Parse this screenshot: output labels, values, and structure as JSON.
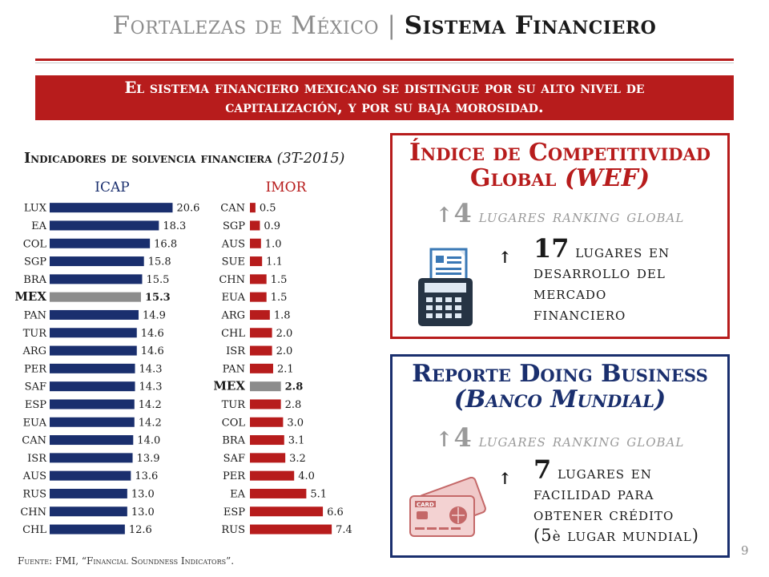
{
  "header": {
    "title_left": "Fortalezas de México",
    "title_sep": "|",
    "title_right": "Sistema Financiero"
  },
  "banner": {
    "line1": "El sistema financiero mexicano se distingue por su alto nivel de",
    "line2": "capitalización, y por su baja morosidad."
  },
  "chart_title": {
    "main": "Indicadores de solvencia financiera",
    "period": "(3T-2015)"
  },
  "source": "Fuente: FMI, “Financial Soundness Indicators”.",
  "page_number": "9",
  "colors": {
    "red": "#b71c1c",
    "navy": "#1a2f6e",
    "highlight_gray": "#8c8c8c"
  },
  "chart_data": [
    {
      "type": "bar",
      "orientation": "horizontal",
      "title": "ICAP",
      "categories": [
        "LUX",
        "EA",
        "COL",
        "SGP",
        "BRA",
        "MEX",
        "PAN",
        "TUR",
        "ARG",
        "PER",
        "SAF",
        "ESP",
        "EUA",
        "CAN",
        "ISR",
        "AUS",
        "RUS",
        "CHN",
        "CHL"
      ],
      "labels": [
        "20.6",
        "18.3",
        "16.8",
        "15.8",
        "15.5",
        "15.3",
        "14.9",
        "14.6",
        "14.6",
        "14.3",
        "14.3",
        "14.2",
        "14.2",
        "14.0",
        "13.9",
        "13.6",
        "13.0",
        "13.0",
        "12.6"
      ],
      "values": [
        20.6,
        18.3,
        16.8,
        15.8,
        15.5,
        15.3,
        14.9,
        14.6,
        14.6,
        14.3,
        14.3,
        14.2,
        14.2,
        14.0,
        13.9,
        13.6,
        13.0,
        13.0,
        12.6
      ],
      "highlight": "MEX",
      "bar_color": "#1a2f6e"
    },
    {
      "type": "bar",
      "orientation": "horizontal",
      "title": "IMOR",
      "categories": [
        "CAN",
        "SGP",
        "AUS",
        "SUE",
        "CHN",
        "EUA",
        "ARG",
        "CHL",
        "ISR",
        "PAN",
        "MEX",
        "TUR",
        "COL",
        "BRA",
        "SAF",
        "PER",
        "EA",
        "ESP",
        "RUS"
      ],
      "labels": [
        "0.5",
        "0.9",
        "1.0",
        "1.1",
        "1.5",
        "1.5",
        "1.8",
        "2.0",
        "2.0",
        "2.1",
        "2.8",
        "2.8",
        "3.0",
        "3.1",
        "3.2",
        "4.0",
        "5.1",
        "6.6",
        "7.4"
      ],
      "values": [
        0.5,
        0.9,
        1.0,
        1.1,
        1.5,
        1.5,
        1.8,
        2.0,
        2.0,
        2.1,
        2.8,
        2.8,
        3.0,
        3.1,
        3.2,
        4.0,
        5.1,
        6.6,
        7.4
      ],
      "highlight": "MEX",
      "bar_color": "#b71c1c"
    }
  ],
  "wef_panel": {
    "title_line1": "Índice de Competitividad",
    "title_line2_a": "Global",
    "title_line2_b": "(WEF)",
    "rank_num": "4",
    "rank_text": "lugares ranking global",
    "detail_num": "17",
    "detail_line1": "lugares en",
    "detail_line2": "desarrollo del",
    "detail_line3": "mercado",
    "detail_line4": "financiero",
    "icon": "calculator-receipt-icon"
  },
  "db_panel": {
    "title_line1": "Reporte Doing Business",
    "title_line2": "(Banco Mundial)",
    "rank_num": "4",
    "rank_text": "lugares ranking global",
    "detail_num": "7",
    "detail_line1": "lugares en",
    "detail_line2": "facilidad para",
    "detail_line3": "obtener crédito",
    "detail_line4a": "(5",
    "detail_line4b": "è",
    "detail_line4c": " lugar mundial)",
    "icon": "credit-card-icon",
    "card_text": "CARD"
  }
}
